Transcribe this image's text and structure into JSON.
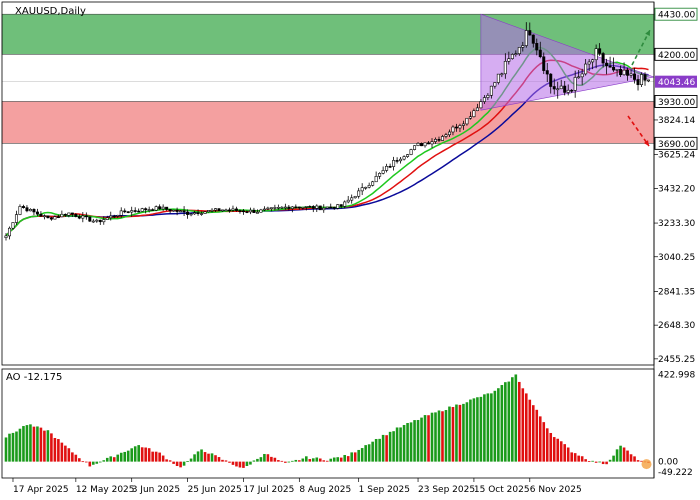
{
  "chart_data": [
    {
      "type": "candlestick",
      "title": "XAUUSD,Daily",
      "y_ticks": [
        4430.0,
        4200.0,
        3824.14,
        3625.24,
        3432.2,
        3233.3,
        3040.25,
        2841.35,
        2648.3,
        2455.25
      ],
      "ylim": [
        2420,
        4500
      ],
      "x_ticks": [
        "17 Apr 2025",
        "12 May 2025",
        "3 Jun 2025",
        "25 Jun 2025",
        "17 Jul 2025",
        "8 Aug 2025",
        "1 Sep 2025",
        "23 Sep 2025",
        "15 Oct 2025",
        "6 Nov 2025"
      ],
      "last_price": "4043.46",
      "zones": [
        {
          "from": 4200,
          "to": 4430,
          "color": "#6fbf7a"
        },
        {
          "from": 3690,
          "to": 3930,
          "color": "#f4a0a0"
        }
      ],
      "levels": [
        {
          "label": "4430.00",
          "value": 4430,
          "color": "#2e8b3e"
        },
        {
          "label": "4200.00",
          "value": 4200,
          "color": "#000000"
        },
        {
          "label": "3930.00",
          "value": 3930,
          "color": "#000000"
        },
        {
          "label": "3690.00",
          "value": 3690,
          "color": "#000000"
        }
      ],
      "triangle": {
        "apex_up": 4430,
        "apex_low": 3880,
        "right": 4070,
        "color": "#b46ae8"
      },
      "ma_colors": {
        "fast": "#1ec81e",
        "mid": "#e01010",
        "slow": "#0a0a9a"
      },
      "close_keys": [
        [
          0,
          3160
        ],
        [
          4,
          3330
        ],
        [
          12,
          3260
        ],
        [
          18,
          3290
        ],
        [
          26,
          3240
        ],
        [
          34,
          3300
        ],
        [
          44,
          3320
        ],
        [
          52,
          3290
        ],
        [
          62,
          3310
        ],
        [
          72,
          3300
        ],
        [
          82,
          3330
        ],
        [
          90,
          3320
        ],
        [
          96,
          3330
        ],
        [
          104,
          3460
        ],
        [
          112,
          3600
        ],
        [
          118,
          3680
        ],
        [
          124,
          3720
        ],
        [
          132,
          3830
        ],
        [
          138,
          3980
        ],
        [
          144,
          4160
        ],
        [
          150,
          4340
        ],
        [
          153,
          4200
        ],
        [
          156,
          4020
        ],
        [
          160,
          3980
        ],
        [
          164,
          4060
        ],
        [
          169,
          4200
        ],
        [
          174,
          4090
        ],
        [
          180,
          4060
        ],
        [
          184,
          4043
        ]
      ],
      "ao_ylim": [
        -60,
        430
      ],
      "ao_ticks": [
        "422.998",
        "0.00",
        "-49.222"
      ]
    },
    {
      "type": "bar",
      "title": "AO -12.175",
      "value_keys": [
        [
          0,
          120
        ],
        [
          6,
          180
        ],
        [
          12,
          150
        ],
        [
          18,
          60
        ],
        [
          24,
          -20
        ],
        [
          30,
          20
        ],
        [
          38,
          80
        ],
        [
          44,
          40
        ],
        [
          50,
          -30
        ],
        [
          56,
          60
        ],
        [
          62,
          10
        ],
        [
          68,
          -35
        ],
        [
          74,
          40
        ],
        [
          80,
          -10
        ],
        [
          86,
          20
        ],
        [
          92,
          10
        ],
        [
          98,
          30
        ],
        [
          104,
          90
        ],
        [
          112,
          160
        ],
        [
          120,
          220
        ],
        [
          130,
          280
        ],
        [
          140,
          340
        ],
        [
          146,
          420
        ],
        [
          150,
          300
        ],
        [
          156,
          140
        ],
        [
          162,
          50
        ],
        [
          168,
          0
        ],
        [
          172,
          -10
        ],
        [
          176,
          80
        ],
        [
          180,
          20
        ],
        [
          184,
          -12
        ]
      ],
      "up_color": "#1a9a1a",
      "down_color": "#e01010"
    }
  ]
}
